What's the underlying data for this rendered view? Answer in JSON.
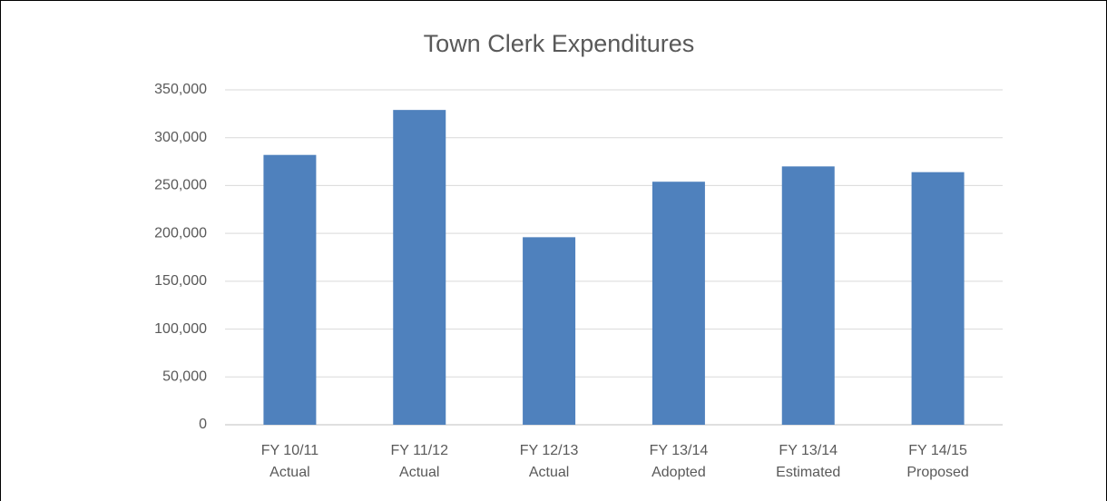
{
  "chart_data": {
    "type": "bar",
    "title": "Town Clerk Expenditures",
    "categories": [
      [
        "FY 10/11",
        "Actual"
      ],
      [
        "FY 11/12",
        "Actual"
      ],
      [
        "FY 12/13",
        "Actual"
      ],
      [
        "FY 13/14",
        "Adopted"
      ],
      [
        "FY 13/14",
        "Estimated"
      ],
      [
        "FY 14/15",
        "Proposed"
      ]
    ],
    "values": [
      282000,
      329000,
      196000,
      254000,
      270000,
      264000
    ],
    "color": "#4f81bd",
    "ylim": [
      0,
      350000
    ],
    "yticks": [
      0,
      {
        "value": 50000,
        "label": "50,000"
      },
      {
        "value": 100000,
        "label": "100,000"
      },
      {
        "value": 150000,
        "label": "150,000"
      },
      {
        "value": 200000,
        "label": "200,000"
      },
      {
        "value": 250000,
        "label": "250,000"
      },
      {
        "value": 300000,
        "label": "300,000"
      },
      {
        "value": 350000,
        "label": "350,000"
      }
    ],
    "grid": true
  }
}
